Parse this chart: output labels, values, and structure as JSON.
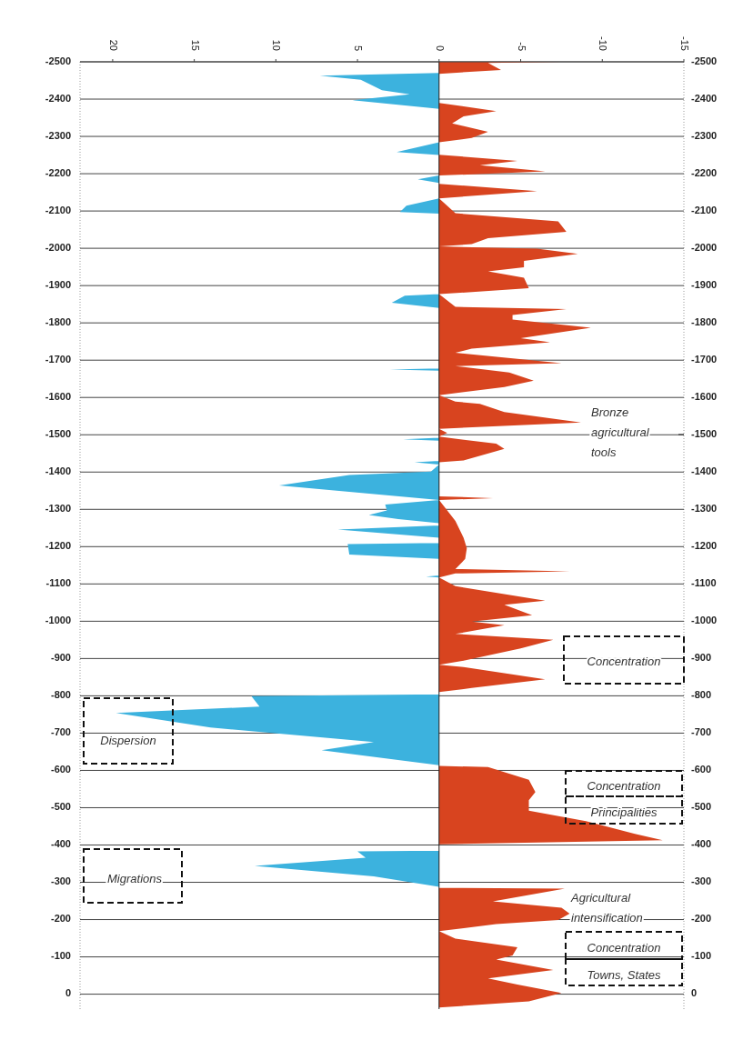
{
  "chart_data": {
    "type": "area",
    "orientation": "horizontal",
    "xlim": [
      22,
      -15
    ],
    "xticks": [
      20,
      15,
      10,
      5,
      0,
      -5,
      -10,
      -15
    ],
    "ylim": [
      40,
      -2500
    ],
    "yticks": [
      -2500,
      -2400,
      -2300,
      -2200,
      -2100,
      -2000,
      -1900,
      -1800,
      -1700,
      -1600,
      -1500,
      -1400,
      -1300,
      -1200,
      -1100,
      -1000,
      -900,
      -800,
      -700,
      -600,
      -500,
      -400,
      -300,
      -200,
      -100,
      0
    ],
    "y2lim": [
      40,
      -2500
    ],
    "y2ticks": [
      -2500,
      -2400,
      -2300,
      -2200,
      -2100,
      -2000,
      -1900,
      -1800,
      -1700,
      -1600,
      -1500,
      -1400,
      -1300,
      -1200,
      -1100,
      -1000,
      -900,
      -800,
      -700,
      -600,
      -500,
      -400,
      -300,
      -200,
      -100,
      0
    ],
    "grid": "y",
    "series": [
      {
        "color": "#3cb2de",
        "x": [
          -2470,
          -2463,
          -2452,
          -2424,
          -2413,
          -2397,
          -2374,
          -2284,
          -2258,
          -2250,
          -2195,
          -2185,
          -2175,
          -2134,
          -2114,
          -2097,
          -2093,
          -1877,
          -1873,
          -1854,
          -1840,
          -1678,
          -1675,
          -1672,
          -1492,
          -1488,
          -1484,
          -1430,
          -1426,
          -1420,
          -1401,
          -1392,
          -1364,
          -1347,
          -1325,
          -1313,
          -1297,
          -1285,
          -1274,
          -1263,
          -1257,
          -1246,
          -1224,
          -1210,
          -1207,
          -1179,
          -1167,
          -1123,
          -1120,
          -1117,
          -804,
          -799,
          -771,
          -754,
          -715,
          -676,
          -654,
          -614,
          -385,
          -383,
          -366,
          -344,
          -316,
          -288
        ],
        "values": [
          0,
          7.3,
          4.8,
          3.5,
          1.8,
          5.3,
          0,
          0,
          2.6,
          0,
          0,
          1.3,
          0,
          0,
          2,
          2.4,
          0,
          0,
          2.1,
          2.9,
          0,
          0,
          3,
          0,
          0,
          2.2,
          0,
          0,
          1.5,
          0,
          0.5,
          5.5,
          9.8,
          5.5,
          0,
          3.3,
          3.2,
          4.3,
          2.5,
          0,
          0,
          6.2,
          0,
          0,
          5.6,
          5.5,
          0,
          0,
          0.8,
          0,
          0,
          11.5,
          11,
          19.8,
          14,
          4,
          7.2,
          0,
          0,
          5,
          4.5,
          11.3,
          4,
          0
        ]
      },
      {
        "color": "#d8441f",
        "x": [
          -2500,
          -2497,
          -2478,
          -2468,
          -2390,
          -2368,
          -2354,
          -2335,
          -2312,
          -2296,
          -2284,
          -2251,
          -2234,
          -2223,
          -2206,
          -2195,
          -2173,
          -2153,
          -2134,
          -2094,
          -2072,
          -2044,
          -2027,
          -2011,
          -2005,
          -1999,
          -1985,
          -1966,
          -1949,
          -1938,
          -1921,
          -1893,
          -1877,
          -1843,
          -1837,
          -1821,
          -1809,
          -1787,
          -1759,
          -1748,
          -1731,
          -1720,
          -1692,
          -1684,
          -1667,
          -1645,
          -1628,
          -1606,
          -1589,
          -1583,
          -1561,
          -1533,
          -1516,
          -1505,
          -1495,
          -1476,
          -1462,
          -1431,
          -1426,
          -1335,
          -1330,
          -1325,
          -1269,
          -1224,
          -1196,
          -1167,
          -1140,
          -1134,
          -1128,
          -1117,
          -1094,
          -1055,
          -1044,
          -1016,
          -999,
          -989,
          -966,
          -950,
          -927,
          -894,
          -883,
          -877,
          -844,
          -821,
          -810,
          -612,
          -609,
          -575,
          -542,
          -520,
          -492,
          -464,
          -430,
          -413,
          -402,
          -285,
          -283,
          -249,
          -232,
          -216,
          -199,
          -188,
          -169,
          -149,
          -126,
          -104,
          -93,
          -65,
          -42,
          -26,
          -3,
          19,
          36
        ],
        "values": [
          -7.5,
          -3,
          -3.8,
          0,
          0,
          -3.5,
          -1.5,
          -0.8,
          -3,
          -2,
          0,
          0,
          -4.8,
          -2.5,
          -6.5,
          0,
          0,
          -6,
          0,
          -1,
          -7.3,
          -7.8,
          -3,
          -2,
          0,
          -6,
          -8.5,
          -5.2,
          -5.2,
          -3,
          -5.2,
          -5.5,
          0,
          -1,
          -7.8,
          -4.5,
          -4.5,
          -9.3,
          -5,
          -6.8,
          -2,
          -1,
          -7.5,
          -1,
          -4.3,
          -5.8,
          -4,
          0,
          -1,
          -2.5,
          -4,
          -8.7,
          0,
          -0.5,
          0,
          -3.5,
          -4,
          -1.5,
          0,
          0,
          -3.3,
          0,
          -1,
          -1.5,
          -1.7,
          -1.6,
          -1,
          -8,
          -1,
          0,
          -1,
          -6.5,
          -4,
          -5.7,
          -2,
          -4,
          -1,
          -7,
          -5,
          -1.5,
          0,
          -1.5,
          -6.5,
          -2,
          0,
          0,
          -3,
          -5.5,
          -5.9,
          -5.5,
          -5.5,
          -9,
          -12,
          -13.7,
          0,
          0,
          -7.7,
          -3.3,
          -7.5,
          -8,
          -7.3,
          -3.5,
          0,
          -1,
          -4.8,
          -4.5,
          -3.5,
          -7,
          -3,
          -4.8,
          -7.5,
          -5.5,
          0
        ]
      }
    ],
    "annotations": [
      "Bronze agricultural tools",
      "Concentration",
      "Dispersion",
      "Concentration",
      "Principalities",
      "Migrations",
      "Agricultural intensification",
      "Concentration",
      "Towns, States"
    ]
  }
}
